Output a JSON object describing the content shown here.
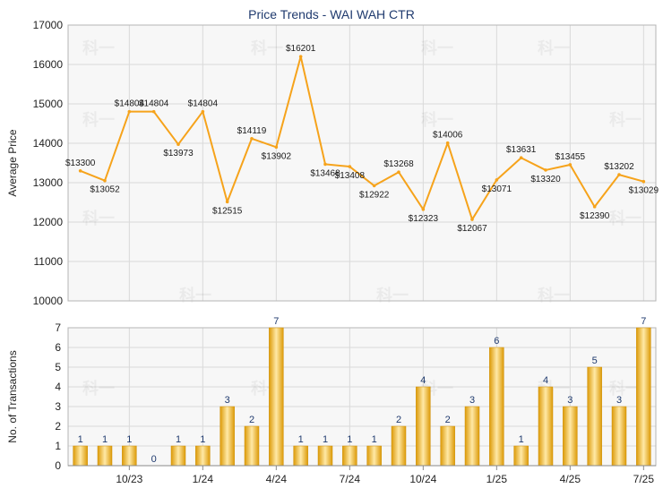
{
  "title": "Price Trends - WAI WAH CTR",
  "colors": {
    "line": "#f6a31b",
    "bar_dark": "#dc9a08",
    "bar_light": "#ffe9a6",
    "grid": "#d9d9d9",
    "plot_bg": "#f7f7f7",
    "title": "#1f3a6e"
  },
  "watermark": "科一",
  "chart_data": [
    {
      "type": "line",
      "title": "Price Trends - WAI WAH CTR",
      "ylabel": "Average Price",
      "ylim": [
        10000,
        17000
      ],
      "yticks": [
        10000,
        11000,
        12000,
        13000,
        14000,
        15000,
        16000,
        17000
      ],
      "grid": true,
      "x_index": [
        0,
        1,
        2,
        3,
        4,
        5,
        6,
        7,
        8,
        9,
        10,
        11,
        12,
        13,
        14,
        15,
        16,
        17,
        18,
        19,
        20,
        21,
        22,
        23,
        24,
        25
      ],
      "values": [
        13300,
        13052,
        14804,
        14804,
        13973,
        14804,
        12515,
        14119,
        13902,
        16201,
        13468,
        13408,
        12922,
        13268,
        12323,
        14006,
        12067,
        13071,
        13631,
        13320,
        13455,
        12390,
        13202,
        13029
      ],
      "point_index": [
        0,
        1,
        2,
        3,
        4,
        5,
        6,
        7,
        8,
        9,
        10,
        11,
        12,
        13,
        14,
        15,
        16,
        17,
        18,
        19,
        20,
        21,
        22,
        23
      ],
      "point_month": [
        0,
        1,
        2,
        3,
        4,
        5,
        6,
        7,
        8,
        9,
        10,
        11,
        12,
        13,
        14,
        15,
        16,
        17,
        18,
        19,
        20,
        21,
        22,
        23
      ],
      "labels": [
        "$13300",
        "$13052",
        "$14804",
        "$14804",
        "$13973",
        "$14804",
        "$12515",
        "$14119",
        "$13902",
        "$16201",
        "$13468",
        "$13408",
        "$12922",
        "$13268",
        "$12323",
        "$14006",
        "$12067",
        "$13071",
        "$13631",
        "$13320",
        "$13455",
        "$12390",
        "$13202",
        "$13029"
      ]
    },
    {
      "type": "bar",
      "ylabel": "No. of Transactions",
      "ylim": [
        0,
        7
      ],
      "yticks": [
        0,
        1,
        2,
        3,
        4,
        5,
        6,
        7
      ],
      "grid": true,
      "x_tick_labels": [
        "10/23",
        "1/24",
        "4/24",
        "7/24",
        "10/24",
        "1/25",
        "4/25",
        "7/25"
      ],
      "values": [
        1,
        1,
        1,
        0,
        1,
        1,
        3,
        2,
        7,
        1,
        1,
        1,
        1,
        2,
        4,
        2,
        3,
        6,
        1,
        4,
        3,
        5,
        3,
        7
      ]
    }
  ]
}
